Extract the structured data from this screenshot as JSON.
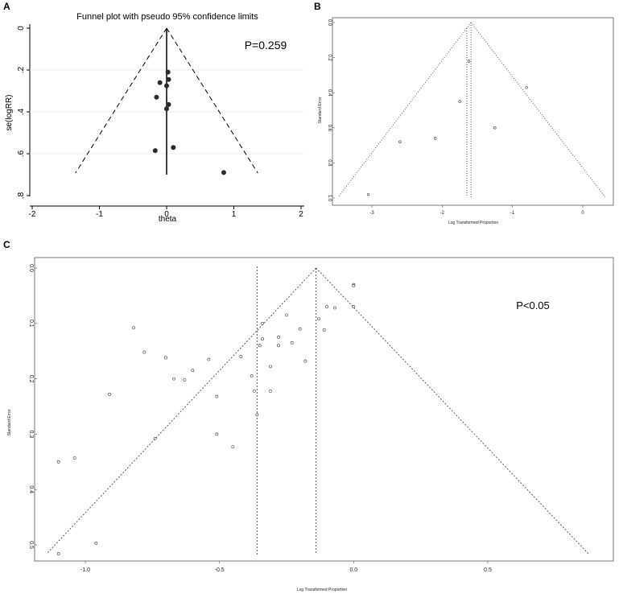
{
  "chart_data": [
    {
      "panel": "A",
      "type": "scatter",
      "title": "Funnel plot with pseudo 95% confidence limits",
      "xlabel": "theta",
      "ylabel": "se(logRR)",
      "annotation": "P=0.259",
      "xlim": [
        -2,
        2
      ],
      "ylim": [
        0,
        0.8
      ],
      "y_inverted": true,
      "x_ticks": [
        "-2",
        "-1",
        "0",
        "1",
        "2"
      ],
      "y_ticks": [
        "0",
        ".2",
        ".4",
        ".6",
        ".8"
      ],
      "pooled_estimate": 0,
      "funnel": "dashed",
      "points": [
        {
          "x": 0.02,
          "y": 0.21
        },
        {
          "x": 0.03,
          "y": 0.245
        },
        {
          "x": -0.1,
          "y": 0.26
        },
        {
          "x": 0.0,
          "y": 0.275
        },
        {
          "x": -0.15,
          "y": 0.33
        },
        {
          "x": 0.03,
          "y": 0.365
        },
        {
          "x": 0.0,
          "y": 0.385
        },
        {
          "x": 0.1,
          "y": 0.57
        },
        {
          "x": -0.17,
          "y": 0.585
        },
        {
          "x": 0.85,
          "y": 0.69
        }
      ]
    },
    {
      "panel": "B",
      "type": "scatter",
      "xlabel": "Log Transformed Proportion",
      "ylabel": "Standard Error",
      "xlim": [
        -3.5,
        0.35
      ],
      "ylim": [
        0,
        1.0
      ],
      "y_inverted": true,
      "x_ticks": [
        "-3",
        "-2",
        "-1",
        "0"
      ],
      "y_ticks": [
        "0.0",
        "0.2",
        "0.4",
        "0.6",
        "0.8",
        "1.0"
      ],
      "pooled_estimate": -1.59,
      "vertical_line": -1.65,
      "funnel": "dotted",
      "points": [
        {
          "x": -1.62,
          "y": 0.22
        },
        {
          "x": -0.8,
          "y": 0.37
        },
        {
          "x": -1.75,
          "y": 0.45
        },
        {
          "x": -1.25,
          "y": 0.6
        },
        {
          "x": -2.1,
          "y": 0.66
        },
        {
          "x": -2.6,
          "y": 0.68
        },
        {
          "x": -3.05,
          "y": 0.98
        }
      ]
    },
    {
      "panel": "C",
      "type": "scatter",
      "xlabel": "Log Transformed Proportion",
      "ylabel": "Standard Error",
      "annotation": "P<0.05",
      "xlim": [
        -1.2,
        0.95
      ],
      "ylim": [
        0,
        0.53
      ],
      "y_inverted": true,
      "x_ticks": [
        "-1.0",
        "-0.5",
        "0.0",
        "0.5"
      ],
      "y_ticks": [
        "0.0",
        "0.1",
        "0.2",
        "0.3",
        "0.4",
        "0.5"
      ],
      "pooled_estimate": -0.14,
      "vertical_line": -0.36,
      "funnel": "dotted",
      "points": [
        {
          "x": 0.0,
          "y": 0.03
        },
        {
          "x": 0.0,
          "y": 0.032
        },
        {
          "x": -0.25,
          "y": 0.085
        },
        {
          "x": -0.1,
          "y": 0.07
        },
        {
          "x": -0.07,
          "y": 0.072
        },
        {
          "x": 0.0,
          "y": 0.07
        },
        {
          "x": -0.13,
          "y": 0.092
        },
        {
          "x": -0.34,
          "y": 0.1
        },
        {
          "x": -0.82,
          "y": 0.108
        },
        {
          "x": -0.2,
          "y": 0.11
        },
        {
          "x": -0.11,
          "y": 0.112
        },
        {
          "x": -0.28,
          "y": 0.125
        },
        {
          "x": -0.34,
          "y": 0.128
        },
        {
          "x": -0.23,
          "y": 0.135
        },
        {
          "x": -0.35,
          "y": 0.14
        },
        {
          "x": -0.28,
          "y": 0.14
        },
        {
          "x": -0.78,
          "y": 0.152
        },
        {
          "x": -0.42,
          "y": 0.16
        },
        {
          "x": -0.7,
          "y": 0.162
        },
        {
          "x": -0.54,
          "y": 0.165
        },
        {
          "x": -0.18,
          "y": 0.168
        },
        {
          "x": -0.31,
          "y": 0.178
        },
        {
          "x": -0.6,
          "y": 0.185
        },
        {
          "x": -0.38,
          "y": 0.195
        },
        {
          "x": -0.67,
          "y": 0.2
        },
        {
          "x": -0.63,
          "y": 0.202
        },
        {
          "x": -0.37,
          "y": 0.222
        },
        {
          "x": -0.31,
          "y": 0.222
        },
        {
          "x": -0.91,
          "y": 0.228
        },
        {
          "x": -0.51,
          "y": 0.232
        },
        {
          "x": -0.36,
          "y": 0.265
        },
        {
          "x": -0.51,
          "y": 0.3
        },
        {
          "x": -0.74,
          "y": 0.308
        },
        {
          "x": -0.45,
          "y": 0.323
        },
        {
          "x": -1.04,
          "y": 0.343
        },
        {
          "x": -1.1,
          "y": 0.35
        },
        {
          "x": -0.96,
          "y": 0.497
        },
        {
          "x": -1.1,
          "y": 0.516
        }
      ]
    }
  ]
}
